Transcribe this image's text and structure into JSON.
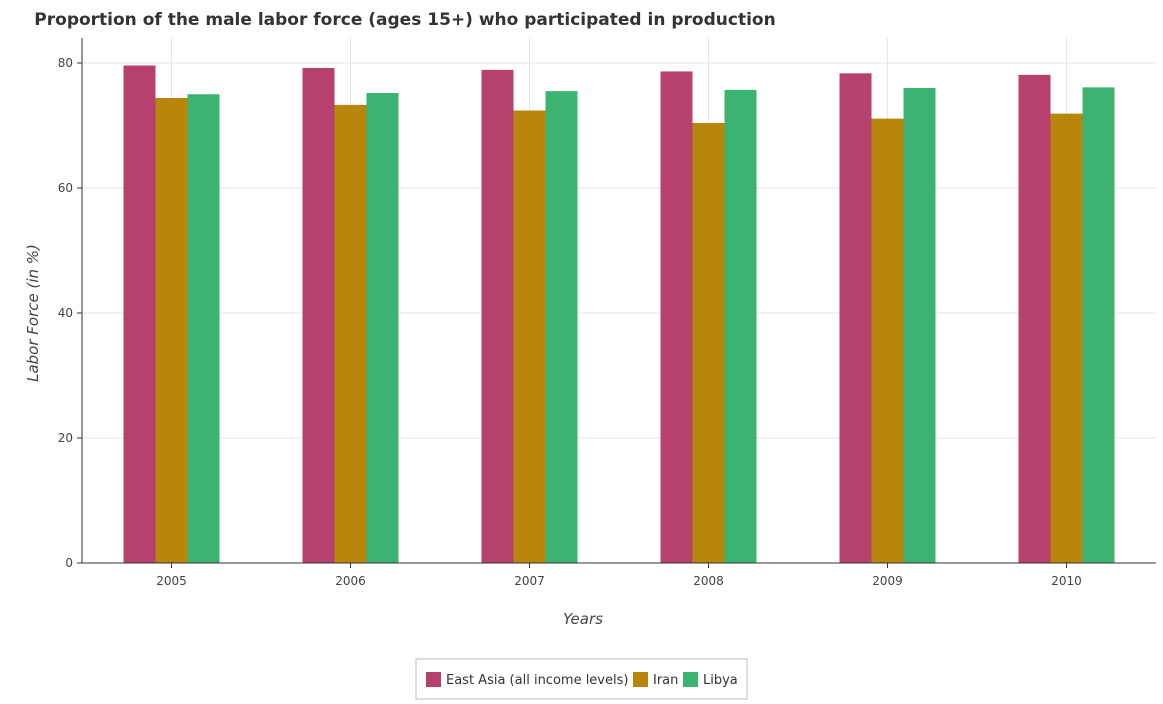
{
  "chart_data": {
    "type": "bar",
    "title": "Proportion of the male labor force (ages 15+) who participated in production",
    "xlabel": "Years",
    "ylabel": "Labor Force (in %)",
    "categories": [
      "2005",
      "2006",
      "2007",
      "2008",
      "2009",
      "2010"
    ],
    "ylim": [
      0,
      84
    ],
    "yticks": [
      0,
      20,
      40,
      60,
      80
    ],
    "grid": true,
    "legend_position": "bottom-center",
    "series": [
      {
        "name": "East Asia (all income levels)",
        "color": "#b5416c",
        "values": [
          79.6,
          79.2,
          78.9,
          78.65,
          78.35,
          78.1
        ]
      },
      {
        "name": "Iran",
        "color": "#b8860b",
        "values": [
          74.4,
          73.3,
          72.4,
          70.4,
          71.1,
          71.9
        ]
      },
      {
        "name": "Libya",
        "color": "#3cb371",
        "values": [
          75.0,
          75.2,
          75.5,
          75.7,
          76.0,
          76.1
        ]
      }
    ]
  }
}
